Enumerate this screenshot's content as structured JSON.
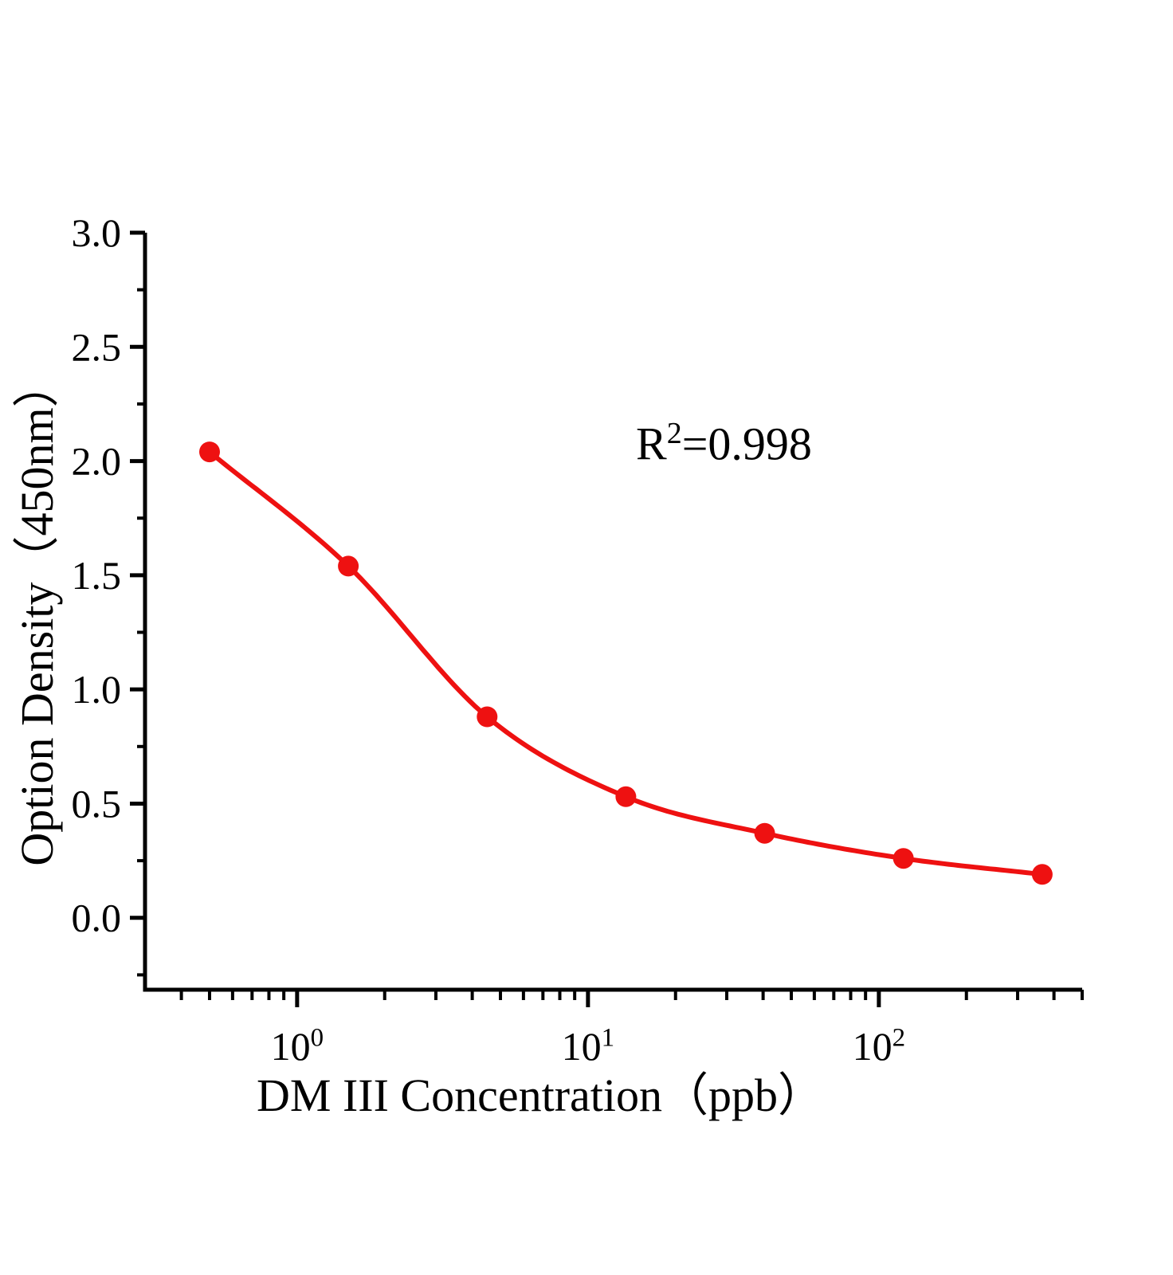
{
  "page": {
    "background": "#ffffff"
  },
  "chart_data": {
    "type": "scatter",
    "title": "",
    "xlabel": "DM III Concentration（ppb）",
    "ylabel": "Option Density（450nm）",
    "x_scale": "log",
    "xlim": [
      0.3,
      500
    ],
    "ylim": [
      -0.315,
      3.0
    ],
    "grid": false,
    "legend": "none",
    "annotation": {
      "base": "R",
      "sup": "2",
      "rest": "=0.998"
    },
    "series": [
      {
        "marker": "circle",
        "line": "smooth",
        "color": "#ee1111",
        "x": [
          0.5,
          1.5,
          4.5,
          13.5,
          40.5,
          121.5,
          364.5
        ],
        "y": [
          2.04,
          1.54,
          0.88,
          0.53,
          0.37,
          0.26,
          0.19
        ]
      }
    ],
    "x_axis": {
      "major_ticks": [
        {
          "value": 1,
          "base": "10",
          "exp": "0"
        },
        {
          "value": 10,
          "base": "10",
          "exp": "1"
        },
        {
          "value": 100,
          "base": "10",
          "exp": "2"
        }
      ],
      "minor_ticks": [
        0.4,
        0.5,
        0.6,
        0.7,
        0.8,
        0.9,
        2,
        3,
        4,
        5,
        6,
        7,
        8,
        9,
        20,
        30,
        40,
        50,
        60,
        70,
        80,
        90,
        200,
        300,
        400,
        500
      ]
    },
    "y_axis": {
      "major_ticks": [
        {
          "value": 3.0,
          "label": "3.0"
        },
        {
          "value": 2.5,
          "label": "2.5"
        },
        {
          "value": 2.0,
          "label": "2.0"
        },
        {
          "value": 1.5,
          "label": "1.5"
        },
        {
          "value": 1.0,
          "label": "1.0"
        },
        {
          "value": 0.5,
          "label": "0.5"
        },
        {
          "value": 0.0,
          "label": "0.0"
        }
      ],
      "minor_ticks": [
        2.75,
        2.25,
        1.75,
        1.25,
        0.75,
        0.25,
        -0.25
      ]
    },
    "colors": {
      "curve": "#ee1111",
      "axis": "#000000",
      "text": "#000000"
    }
  }
}
